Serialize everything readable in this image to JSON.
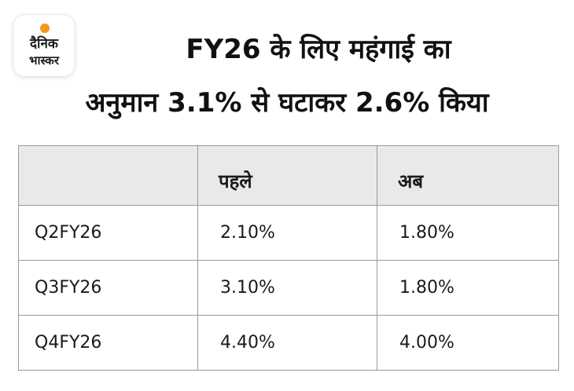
{
  "brand": {
    "logo_line1": "दैनिक",
    "logo_line2": "भास्कर",
    "sun_color": "#f7941d"
  },
  "headline": {
    "line1": "FY26 के लिए महंगाई का",
    "line2": "अनुमान 3.1% से घटाकर 2.6% किया"
  },
  "table": {
    "headers": [
      "",
      "पहले",
      "अब"
    ],
    "rows": [
      {
        "label": "Q2FY26",
        "before": "2.10%",
        "now": "1.80%"
      },
      {
        "label": "Q3FY26",
        "before": "3.10%",
        "now": "1.80%"
      },
      {
        "label": "Q4FY26",
        "before": "4.40%",
        "now": "4.00%"
      }
    ]
  }
}
